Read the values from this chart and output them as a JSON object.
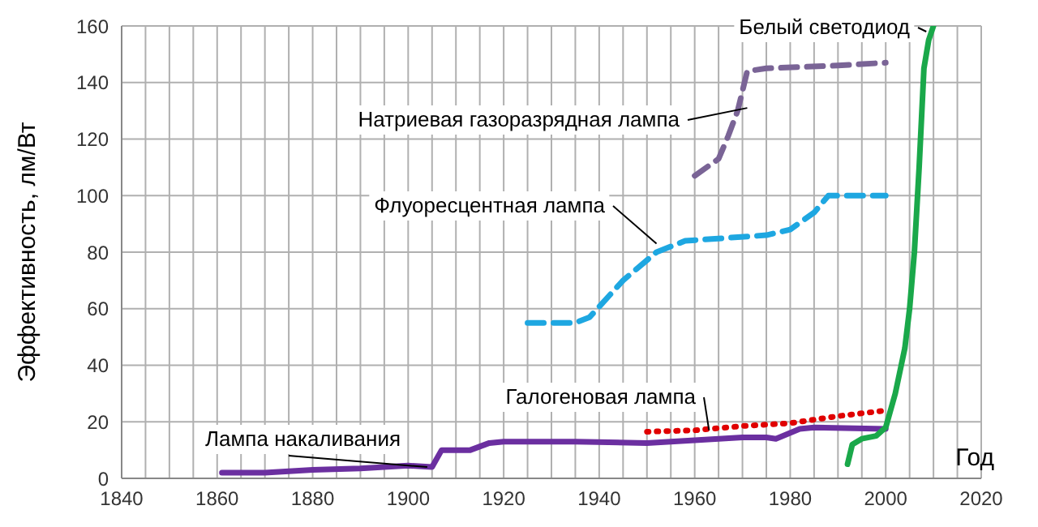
{
  "chart_data": {
    "type": "line",
    "xlabel": "Год",
    "ylabel": "Эффективность, лм/Вт",
    "xlim": [
      1840,
      2020
    ],
    "xticks": [
      1840,
      1860,
      1880,
      1900,
      1920,
      1940,
      1960,
      1980,
      2000,
      2020
    ],
    "ylim": [
      0,
      160
    ],
    "yticks": [
      0,
      20,
      40,
      60,
      80,
      100,
      120,
      140,
      160
    ],
    "grid": true,
    "legend": false,
    "series": [
      {
        "name": "Лампа накаливания",
        "color": "#6b2fa0",
        "line_style": "solid",
        "x": [
          1861,
          1870,
          1880,
          1890,
          1900,
          1905,
          1907,
          1913,
          1917,
          1920,
          1935,
          1950,
          1960,
          1970,
          1975,
          1977,
          1982,
          1985,
          2000
        ],
        "values": [
          2,
          2,
          3,
          3.5,
          4.5,
          4,
          10,
          10,
          12.5,
          13,
          13,
          12.5,
          13.5,
          14.5,
          14.5,
          14,
          17.5,
          18,
          17.5
        ]
      },
      {
        "name": "Галогеновая лампа",
        "color": "#e00000",
        "line_style": "dotted",
        "x": [
          1950,
          1960,
          1970,
          1980,
          1990,
          2000
        ],
        "values": [
          16.5,
          17,
          18.5,
          19.5,
          22,
          24
        ]
      },
      {
        "name": "Флуоресцентная лампа",
        "color": "#1ea7e1",
        "line_style": "dashed",
        "x": [
          1925,
          1935,
          1938,
          1945,
          1952,
          1958,
          1975,
          1980,
          1985,
          1988,
          2000
        ],
        "values": [
          55,
          55,
          57,
          70,
          80,
          84,
          86,
          88,
          94,
          100,
          100
        ]
      },
      {
        "name": "Натриевая газоразрядная лампа",
        "color": "#7a6496",
        "line_style": "dashed",
        "x": [
          1960,
          1965,
          1967,
          1969,
          1971,
          1975,
          1990,
          2000
        ],
        "values": [
          107,
          113,
          121,
          130,
          144,
          145,
          146,
          147
        ]
      },
      {
        "name": "Белый светодиод",
        "color": "#1aa84a",
        "line_style": "solid",
        "x": [
          1992,
          1993,
          1995,
          1998,
          2000,
          2002,
          2004,
          2005,
          2006,
          2007,
          2008,
          2009,
          2010
        ],
        "values": [
          5,
          12,
          14,
          15,
          18,
          30,
          46,
          60,
          80,
          110,
          145,
          155,
          160
        ]
      }
    ]
  }
}
